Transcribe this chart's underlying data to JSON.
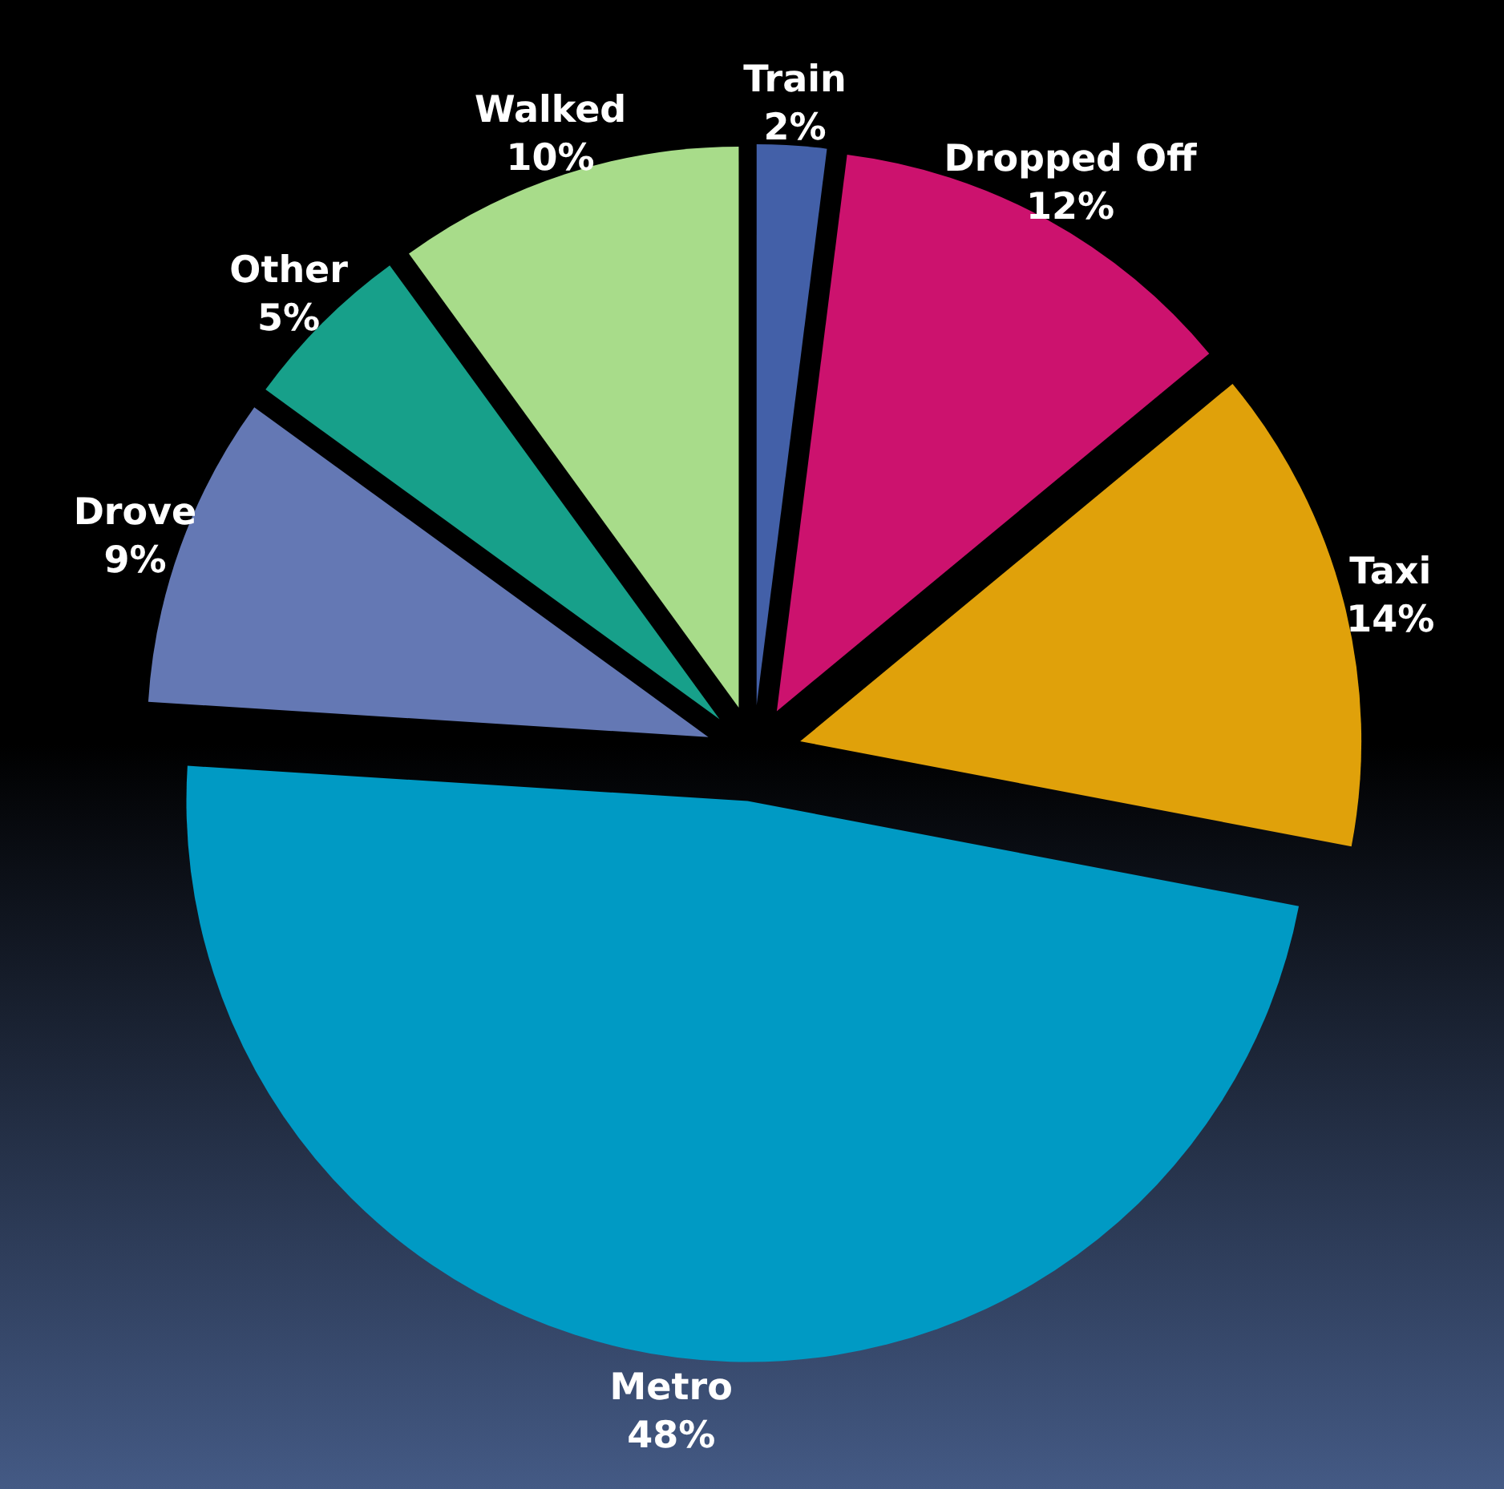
{
  "chart_data": {
    "type": "pie",
    "categories": [
      "Train",
      "Dropped Off",
      "Taxi",
      "Metro",
      "Drove",
      "Other",
      "Walked"
    ],
    "values": [
      2,
      12,
      14,
      48,
      9,
      5,
      10
    ],
    "colors": [
      "#4360a8",
      "#cc126e",
      "#e0a10a",
      "#009ac4",
      "#6478b4",
      "#17a08a",
      "#a8dc8a"
    ],
    "value_labels": [
      "2%",
      "12%",
      "14%",
      "48%",
      "9%",
      "5%",
      "10%"
    ]
  }
}
